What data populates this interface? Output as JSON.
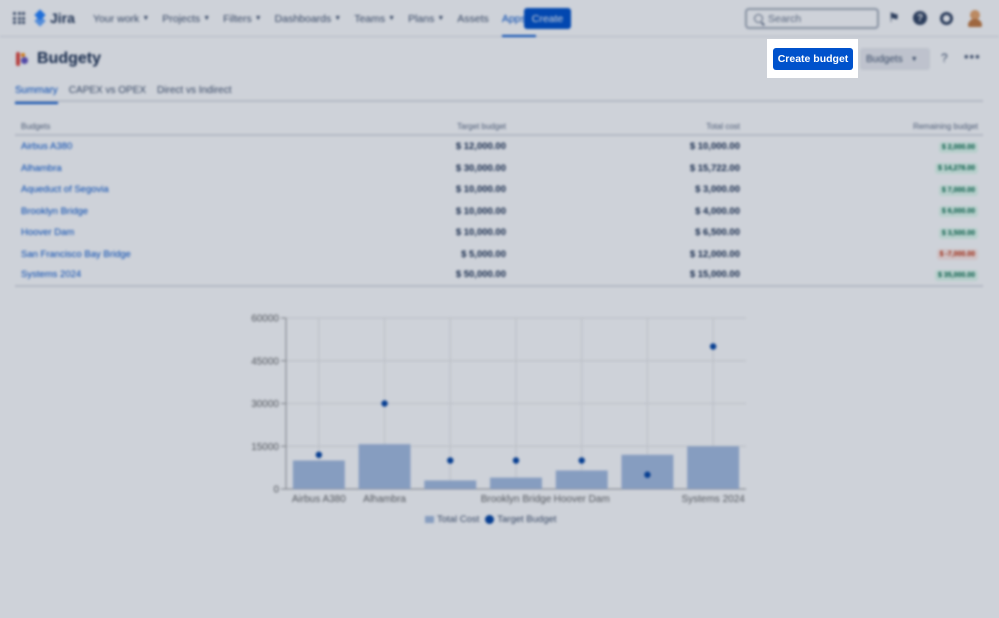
{
  "topnav": {
    "app_name": "Jira",
    "items": [
      {
        "label": "Your work",
        "active": false
      },
      {
        "label": "Projects",
        "active": false
      },
      {
        "label": "Filters",
        "active": false
      },
      {
        "label": "Dashboards",
        "active": false
      },
      {
        "label": "Teams",
        "active": false
      },
      {
        "label": "Plans",
        "active": false
      },
      {
        "label": "Assets",
        "active": false,
        "no_chevron": true
      },
      {
        "label": "Apps",
        "active": true
      }
    ],
    "create_label": "Create",
    "search_placeholder": "Search",
    "icons": [
      "notifications-icon",
      "help-icon",
      "settings-icon",
      "avatar"
    ]
  },
  "header": {
    "title": "Budgety",
    "create_budget_label": "Create budget",
    "budgets_dropdown_label": "Budgets",
    "help_label": "?",
    "more_label": "•••"
  },
  "tabs": [
    {
      "label": "Summary",
      "active": true
    },
    {
      "label": "CAPEX vs OPEX",
      "active": false
    },
    {
      "label": "Direct vs Indirect",
      "active": false
    }
  ],
  "table": {
    "columns": [
      "Budgets",
      "Target budget",
      "Total cost",
      "Remaining budget"
    ],
    "rows": [
      {
        "name": "Airbus A380",
        "target": "$ 12,000.00",
        "cost": "$ 10,000.00",
        "remaining": "$ 2,000.00",
        "negative": false
      },
      {
        "name": "Alhambra",
        "target": "$ 30,000.00",
        "cost": "$ 15,722.00",
        "remaining": "$ 14,278.00",
        "negative": false
      },
      {
        "name": "Aqueduct of Segovia",
        "target": "$ 10,000.00",
        "cost": "$ 3,000.00",
        "remaining": "$ 7,000.00",
        "negative": false
      },
      {
        "name": "Brooklyn Bridge",
        "target": "$ 10,000.00",
        "cost": "$ 4,000.00",
        "remaining": "$ 6,000.00",
        "negative": false
      },
      {
        "name": "Hoover Dam",
        "target": "$ 10,000.00",
        "cost": "$ 6,500.00",
        "remaining": "$ 3,500.00",
        "negative": false
      },
      {
        "name": "San Francisco Bay Bridge",
        "target": "$ 5,000.00",
        "cost": "$ 12,000.00",
        "remaining": "$ -7,000.00",
        "negative": true
      },
      {
        "name": "Systems 2024",
        "target": "$ 50,000.00",
        "cost": "$ 15,000.00",
        "remaining": "$ 35,000.00",
        "negative": false
      }
    ]
  },
  "chart_data": {
    "type": "bar",
    "categories": [
      "Airbus A380",
      "Alhambra",
      "Aqueduct of Segovia",
      "Brooklyn Bridge",
      "Hoover Dam",
      "San Francisco Bay Bridge",
      "Systems 2024"
    ],
    "shown_tick_labels": [
      "Airbus A380",
      "Alhambra",
      "",
      "Brooklyn Bridge",
      "Hoover Dam",
      "",
      "Systems 2024"
    ],
    "series": [
      {
        "name": "Total Cost",
        "kind": "bar",
        "color": "#a6bde0",
        "values": [
          10000,
          15722,
          3000,
          4000,
          6500,
          12000,
          15000
        ]
      },
      {
        "name": "Target Budget",
        "kind": "point",
        "color": "#0747a6",
        "values": [
          12000,
          30000,
          10000,
          10000,
          10000,
          5000,
          50000
        ]
      }
    ],
    "yticks": [
      "0",
      "15000",
      "30000",
      "45000",
      "60000"
    ],
    "ylim": [
      0,
      60000
    ],
    "grid": true,
    "legend": "bottom"
  }
}
